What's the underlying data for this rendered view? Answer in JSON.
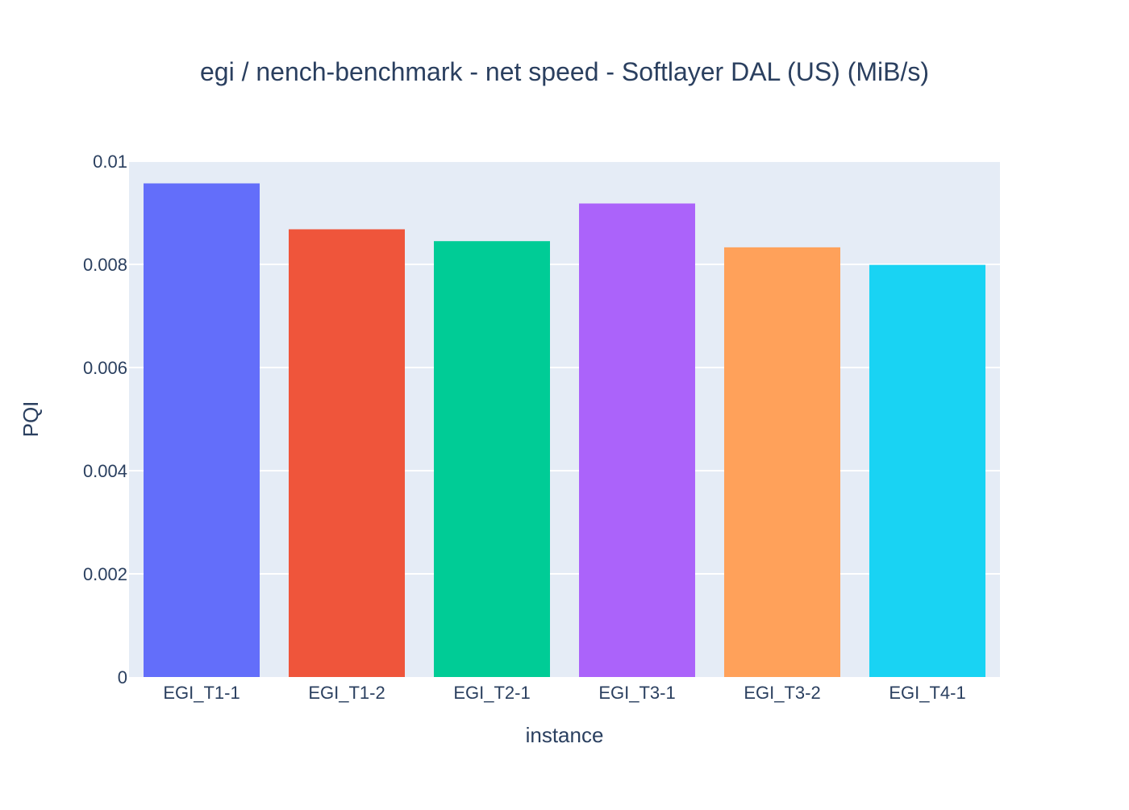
{
  "chart_data": {
    "type": "bar",
    "title": "egi / nench-benchmark - net speed - Softlayer DAL (US) (MiB/s)",
    "xlabel": "instance",
    "ylabel": "PQI",
    "categories": [
      "EGI_T1-1",
      "EGI_T1-2",
      "EGI_T2-1",
      "EGI_T3-1",
      "EGI_T3-2",
      "EGI_T4-1"
    ],
    "values": [
      0.00957,
      0.00868,
      0.00845,
      0.00918,
      0.00833,
      0.00799
    ],
    "colors": [
      "#636efa",
      "#ef553b",
      "#00cc96",
      "#ab63fa",
      "#ffa15a",
      "#19d3f3"
    ],
    "ylim": [
      0,
      0.01
    ],
    "yticks": [
      0,
      0.002,
      0.004,
      0.006,
      0.008,
      0.01
    ],
    "ytick_labels": [
      "0",
      "0.002",
      "0.004",
      "0.006",
      "0.008",
      "0.01"
    ],
    "grid": true,
    "legend": "none",
    "background_color": "#e5ecf6"
  }
}
